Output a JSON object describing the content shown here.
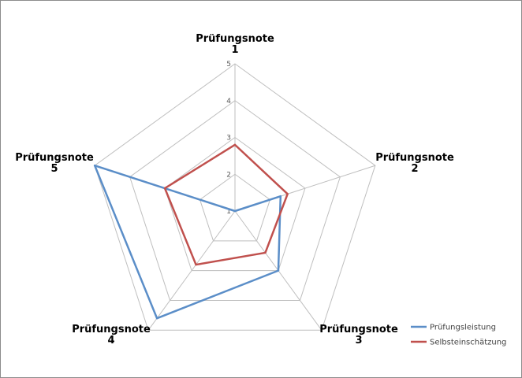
{
  "chart_data": {
    "type": "radar",
    "categories": [
      "Prüfungsnote 1",
      "Prüfungsnote 2",
      "Prüfungsnote 3",
      "Prüfungsnote 4",
      "Prüfungsnote 5"
    ],
    "category_lines": [
      [
        "Prüfungsnote",
        "1"
      ],
      [
        "Prüfungsnote",
        "2"
      ],
      [
        "Prüfungsnote",
        "3"
      ],
      [
        "Prüfungsnote",
        "4"
      ],
      [
        "Prüfungsnote",
        "5"
      ]
    ],
    "ticks": [
      1,
      2,
      3,
      4,
      5
    ],
    "range": [
      1,
      5
    ],
    "grid": true,
    "legend_position": "bottom-right",
    "series": [
      {
        "name": "Prüfungsleistung",
        "color": "#5b8ec8",
        "values": [
          1.0,
          2.3,
          3.0,
          4.6,
          5.0
        ]
      },
      {
        "name": "Selbsteinschätzung",
        "color": "#c0504d",
        "values": [
          2.8,
          2.5,
          2.4,
          2.8,
          3.0
        ]
      }
    ]
  }
}
